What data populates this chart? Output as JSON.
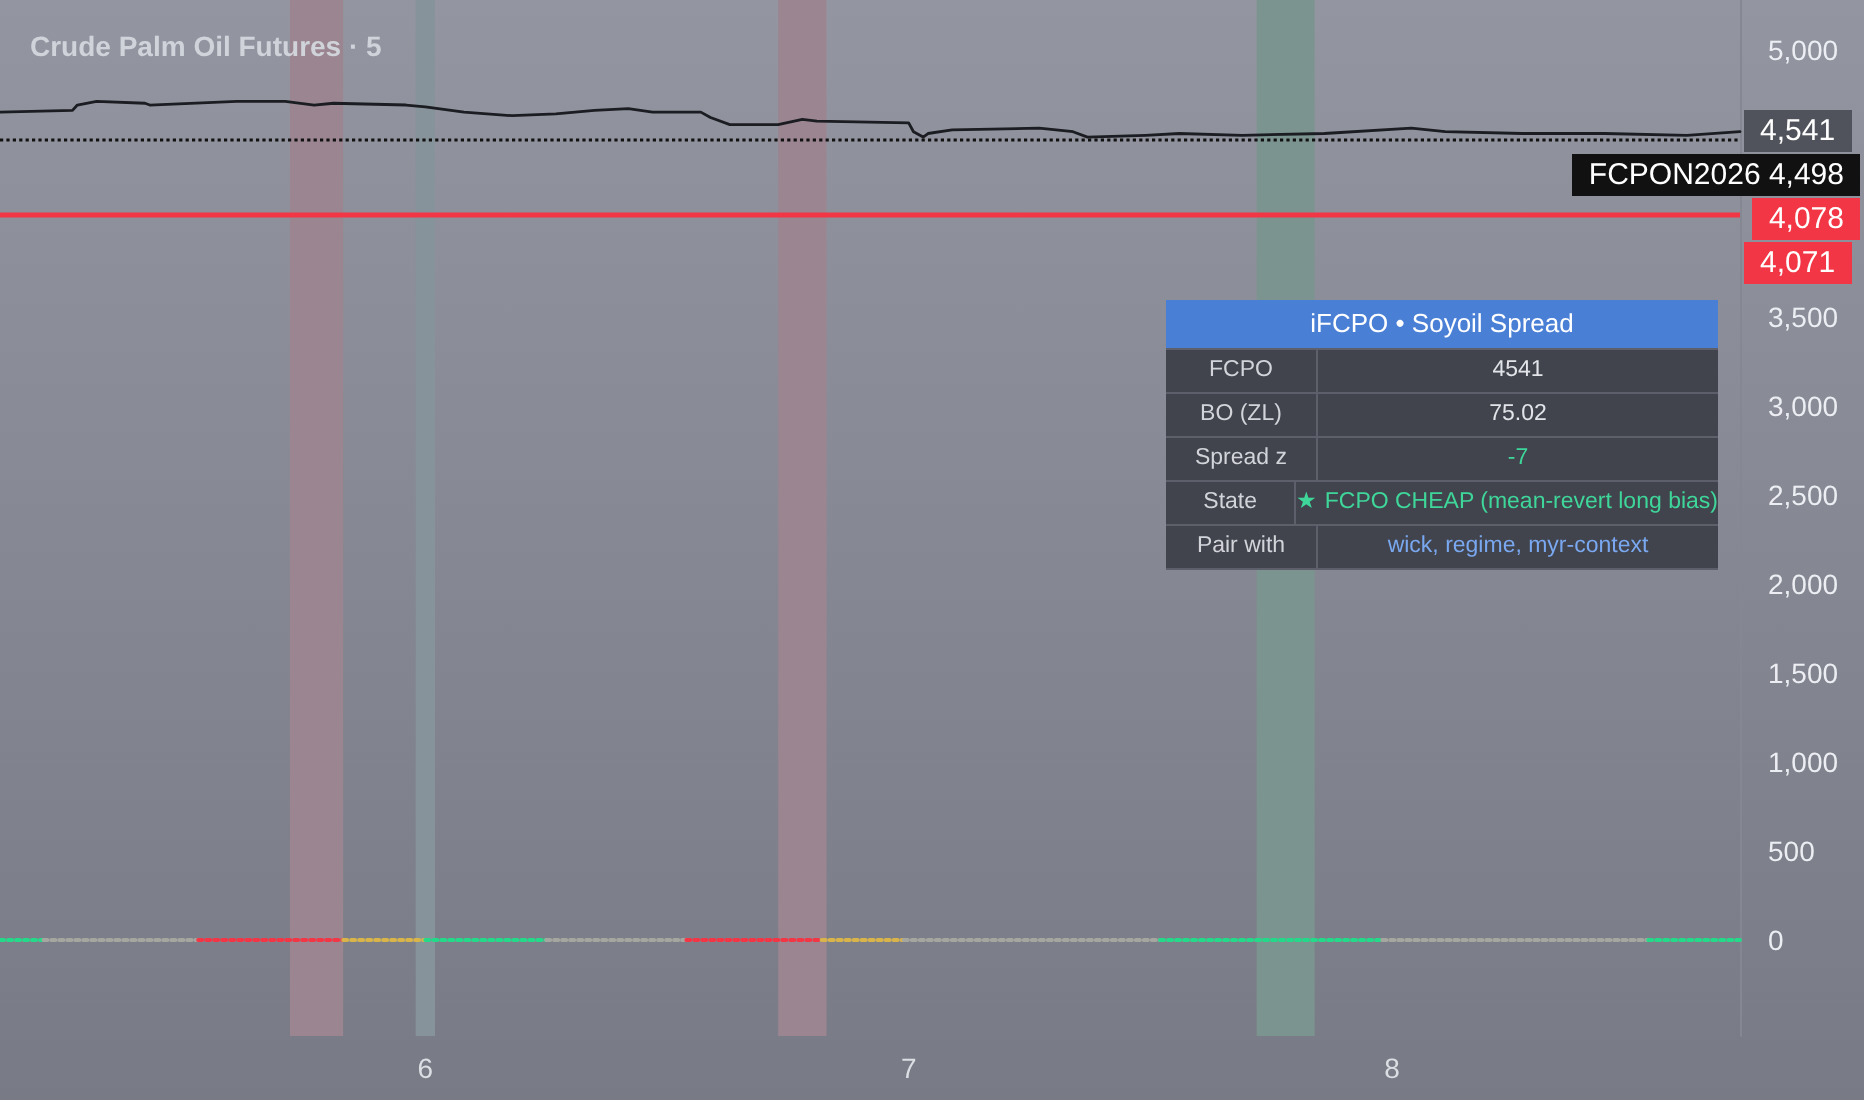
{
  "chart_data": {
    "type": "line",
    "title": "Crude Palm Oil Futures · 5",
    "xlim": [
      5.12,
      8.72
    ],
    "xticks": [
      6,
      7,
      8
    ],
    "ylim": [
      -540,
      5280
    ],
    "yticks": [
      0,
      500,
      {
        "value": 1000,
        "label": "1,000"
      },
      {
        "value": 1500,
        "label": "1,500"
      },
      {
        "value": 2000,
        "label": "2,000"
      },
      {
        "value": 2500,
        "label": "2,500"
      },
      {
        "value": 3000,
        "label": "3,000"
      },
      {
        "value": 3500,
        "label": "3,500"
      },
      {
        "value": 5000,
        "label": "5,000"
      }
    ],
    "series": [
      {
        "color": "#1b1d22",
        "line_style": "solid",
        "x": [
          5.12,
          5.27,
          5.28,
          5.32,
          5.42,
          5.43,
          5.61,
          5.71,
          5.77,
          5.81,
          5.96,
          6.0,
          6.08,
          6.18,
          6.27,
          6.35,
          6.42,
          6.47,
          6.57,
          6.59,
          6.63,
          6.73,
          6.78,
          6.81,
          7.0,
          7.01,
          7.03,
          7.04,
          7.09,
          7.27,
          7.34,
          7.37,
          7.49,
          7.56,
          7.69,
          7.86,
          8.04,
          8.11,
          8.27,
          8.44,
          8.61,
          8.72
        ],
        "values": [
          4650,
          4660,
          4690,
          4710,
          4700,
          4690,
          4710,
          4710,
          4690,
          4700,
          4690,
          4680,
          4650,
          4630,
          4640,
          4660,
          4670,
          4650,
          4650,
          4620,
          4580,
          4580,
          4610,
          4600,
          4590,
          4540,
          4510,
          4530,
          4550,
          4560,
          4540,
          4510,
          4520,
          4530,
          4520,
          4530,
          4560,
          4540,
          4530,
          4530,
          4520,
          4541
        ],
        "value_labels": [
          null,
          null,
          null,
          null,
          null,
          null,
          null,
          null,
          null,
          null,
          null,
          null,
          null,
          null,
          null,
          null,
          null,
          null,
          null,
          null,
          null,
          null,
          null,
          null,
          null,
          null,
          null,
          null,
          null,
          null,
          null,
          null,
          null,
          null,
          null,
          null,
          null,
          null,
          null,
          null,
          null,
          "4,541"
        ]
      },
      {
        "color": "#25d98a",
        "line_style": "dotted",
        "x": [
          5.12,
          5.21
        ],
        "values": [
          0,
          0
        ]
      },
      {
        "color": "#a6a6a0",
        "line_style": "dotted",
        "x": [
          5.21,
          5.53
        ],
        "values": [
          0,
          0
        ]
      },
      {
        "color": "#f23645",
        "line_style": "dotted",
        "x": [
          5.53,
          5.83
        ],
        "values": [
          0,
          0
        ]
      },
      {
        "color": "#d8b44a",
        "line_style": "dotted",
        "x": [
          5.83,
          6.0
        ],
        "values": [
          0,
          0
        ]
      },
      {
        "color": "#25d98a",
        "line_style": "dotted",
        "x": [
          6.0,
          6.25
        ],
        "values": [
          0,
          0
        ]
      },
      {
        "color": "#a6a6a0",
        "line_style": "dotted",
        "x": [
          6.25,
          6.54
        ],
        "values": [
          0,
          0
        ]
      },
      {
        "color": "#f23645",
        "line_style": "dotted",
        "x": [
          6.54,
          6.82
        ],
        "values": [
          0,
          0
        ]
      },
      {
        "color": "#d8b44a",
        "line_style": "dotted",
        "x": [
          6.82,
          6.99
        ],
        "values": [
          0,
          0
        ]
      },
      {
        "color": "#a6a6a0",
        "line_style": "dotted",
        "x": [
          6.99,
          7.52
        ],
        "values": [
          0,
          0
        ]
      },
      {
        "color": "#25d98a",
        "line_style": "dotted",
        "x": [
          7.52,
          7.98
        ],
        "values": [
          0,
          0
        ]
      },
      {
        "color": "#a6a6a0",
        "line_style": "dotted",
        "x": [
          7.98,
          8.53
        ],
        "values": [
          0,
          0
        ]
      },
      {
        "color": "#25d98a",
        "line_style": "dotted",
        "x": [
          8.53,
          8.72
        ],
        "values": [
          0,
          0
        ]
      }
    ],
    "ref_lines": [
      {
        "axis": "y",
        "value": 4498,
        "label": "FCPON2026 4,498",
        "color": "#111111",
        "line_style": "dotted"
      },
      {
        "axis": "y",
        "value": 4078,
        "label": "4,078",
        "color": "#f23645",
        "line_style": "solid"
      }
    ],
    "bands": [
      {
        "axis": "x",
        "from": 5.72,
        "to": 5.83,
        "color": "#9a8590"
      },
      {
        "axis": "x",
        "from": 5.98,
        "to": 6.02,
        "color": "#87939a"
      },
      {
        "axis": "x",
        "from": 6.73,
        "to": 6.83,
        "color": "#9a8590"
      },
      {
        "axis": "x",
        "from": 7.72,
        "to": 7.84,
        "color": "#7c9490"
      }
    ],
    "annotations": [
      "iFCPO • Soyoil Spread",
      "FCPO",
      "4541",
      "BO (ZL)",
      "75.02",
      "Spread z",
      "-7",
      "State",
      "★ FCPO CHEAP (mean-revert long bias)",
      "Pair with",
      "wick, regime, myr-context",
      {
        "text": "4,071",
        "x": 8.72,
        "y": 4071
      }
    ]
  }
}
